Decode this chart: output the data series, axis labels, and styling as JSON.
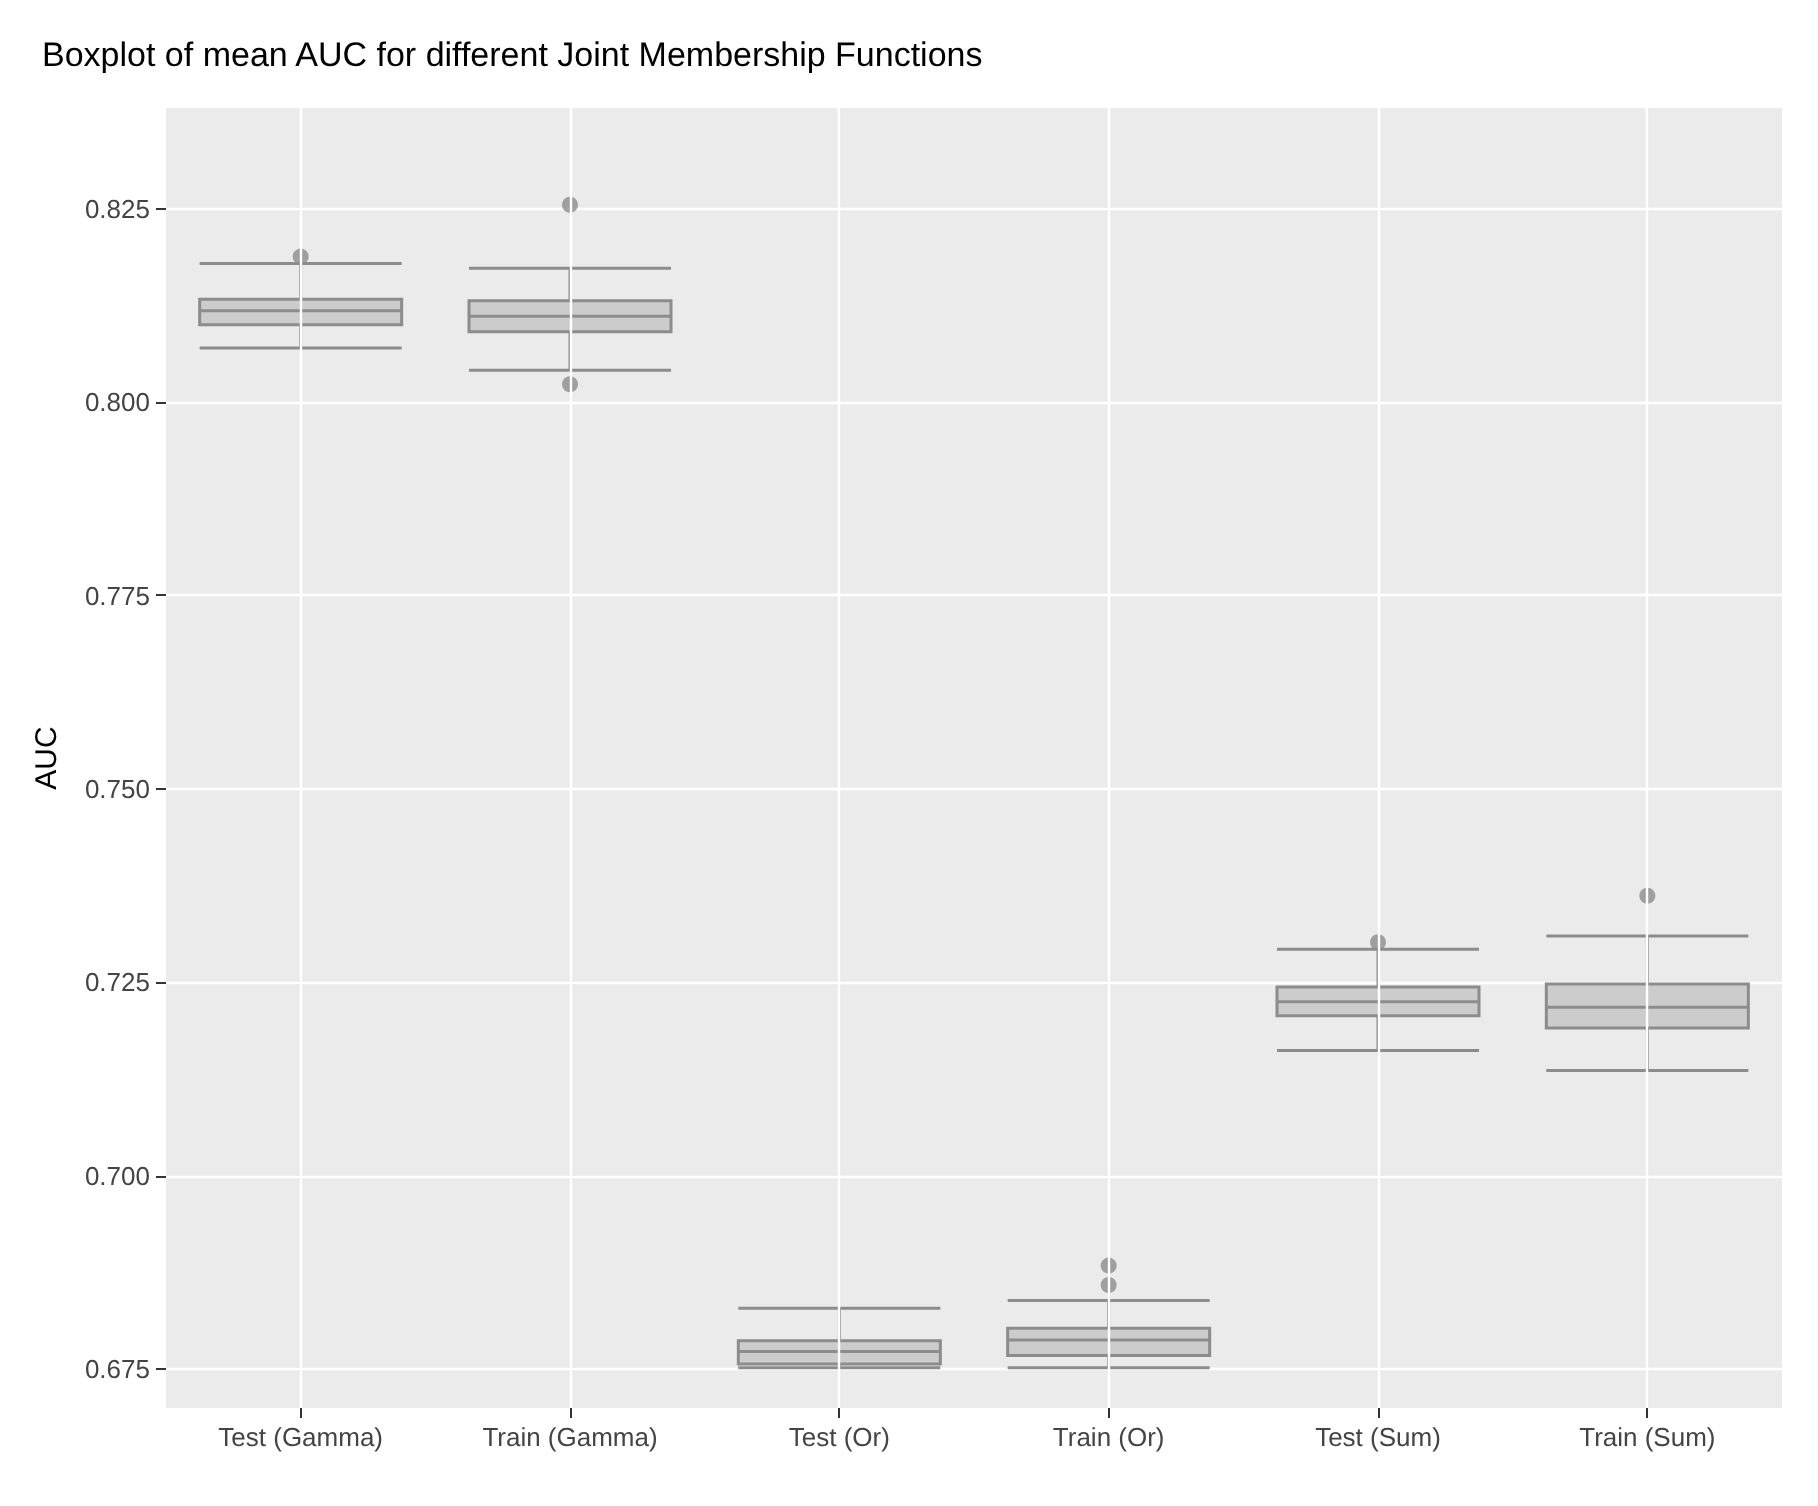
{
  "chart_data": {
    "type": "box",
    "title": "Boxplot of mean AUC for different Joint Membership Functions",
    "ylabel": "AUC",
    "categories": [
      "Test (Gamma)",
      "Train (Gamma)",
      "Test (Or)",
      "Train (Or)",
      "Test (Sum)",
      "Train (Sum)"
    ],
    "series": [
      {
        "color": "#8c8c8c",
        "boxes": [
          {
            "low": 0.807,
            "q1": 0.81,
            "median": 0.8118,
            "q3": 0.8133,
            "high": 0.8179,
            "outliers": [
              0.8188
            ]
          },
          {
            "low": 0.8041,
            "q1": 0.8091,
            "median": 0.8111,
            "q3": 0.8131,
            "high": 0.8173,
            "outliers": [
              0.8255,
              0.8023
            ]
          },
          {
            "low": 0.6752,
            "q1": 0.6757,
            "median": 0.6773,
            "q3": 0.6787,
            "high": 0.6829
          },
          {
            "low": 0.6752,
            "q1": 0.6768,
            "median": 0.6788,
            "q3": 0.6803,
            "high": 0.6839,
            "outliers": [
              0.6884,
              0.6859
            ]
          },
          {
            "low": 0.7162,
            "q1": 0.7207,
            "median": 0.7225,
            "q3": 0.7244,
            "high": 0.7293,
            "outliers": [
              0.7302
            ]
          },
          {
            "low": 0.7136,
            "q1": 0.7191,
            "median": 0.7218,
            "q3": 0.7248,
            "high": 0.731,
            "outliers": [
              0.7362
            ]
          }
        ]
      }
    ],
    "ylim": [
      0.67,
      0.838
    ],
    "yticks": [
      0.675,
      {
        "value": 0.7,
        "label": "0.700"
      },
      0.725,
      {
        "value": 0.75,
        "label": "0.750"
      },
      0.775,
      {
        "value": 0.8,
        "label": "0.800"
      },
      0.825
    ],
    "grid": true
  }
}
